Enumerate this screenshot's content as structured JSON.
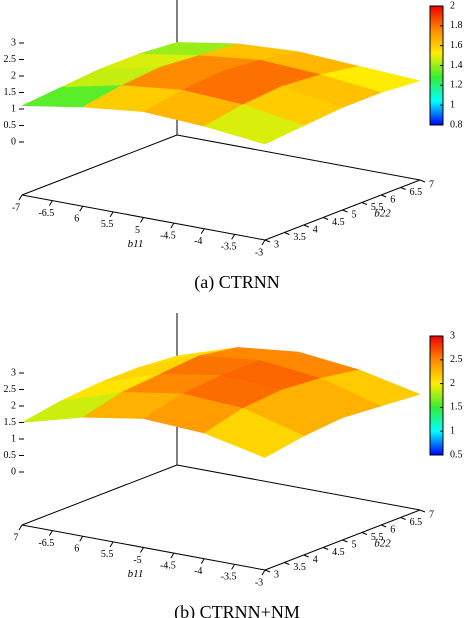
{
  "chart_data": [
    {
      "type": "surface",
      "caption": "(a) CTRNN",
      "xlabel": "b11",
      "ylabel": "b22",
      "x": [
        -7,
        -6,
        -5,
        -4,
        -3
      ],
      "y": [
        3,
        4,
        5,
        6,
        7
      ],
      "z": [
        [
          1.1,
          1.4,
          1.6,
          1.5,
          1.3
        ],
        [
          1.2,
          1.6,
          1.8,
          1.7,
          1.4
        ],
        [
          1.3,
          1.7,
          1.9,
          1.8,
          1.5
        ],
        [
          1.3,
          1.6,
          1.8,
          1.7,
          1.5
        ],
        [
          1.2,
          1.5,
          1.6,
          1.5,
          1.4
        ]
      ],
      "xlim": [
        -7,
        -3
      ],
      "xticks": [
        -7,
        -6.5,
        {
          "value": -6,
          "label": "6"
        },
        {
          "value": -5.5,
          "label": "5.5"
        },
        {
          "value": -5,
          "label": "5"
        },
        -4.5,
        -4,
        -3.5,
        -3
      ],
      "ylim": [
        3,
        7
      ],
      "yticks": [
        3,
        3.5,
        4,
        4.5,
        5,
        5.5,
        6,
        6.5,
        7
      ],
      "zlim": [
        0,
        3
      ],
      "zticks": [
        0,
        0.5,
        1,
        1.5,
        2,
        2.5,
        3
      ],
      "cblim": [
        0.8,
        2
      ],
      "cbticks": [
        0.8,
        1,
        1.2,
        1.4,
        1.6,
        1.8,
        2
      ],
      "colormap": [
        "#0000ff",
        "#00ffff",
        "#33ee33",
        "#ffee00",
        "#ff8800",
        "#ee0000"
      ]
    },
    {
      "type": "surface",
      "caption": "(b) CTRNN+NM",
      "xlabel": "b11",
      "ylabel": "b22",
      "x": [
        -7,
        -6,
        -5,
        -4,
        -3
      ],
      "y": [
        3,
        4,
        5,
        6,
        7
      ],
      "z": [
        [
          1.5,
          2.0,
          2.3,
          2.2,
          1.8
        ],
        [
          1.7,
          2.3,
          2.6,
          2.5,
          2.0
        ],
        [
          1.8,
          2.4,
          2.7,
          2.6,
          2.1
        ],
        [
          1.8,
          2.5,
          2.7,
          2.5,
          2.0
        ],
        [
          1.7,
          2.3,
          2.5,
          2.3,
          1.9
        ]
      ],
      "xlim": [
        -7,
        -3
      ],
      "xticks": [
        {
          "value": -7,
          "label": "7"
        },
        -6.5,
        {
          "value": -6,
          "label": "6"
        },
        {
          "value": -5.5,
          "label": "5.5"
        },
        -5,
        -4.5,
        -4,
        -3.5,
        -3
      ],
      "ylim": [
        3,
        7
      ],
      "yticks": [
        3,
        3.5,
        4,
        4.5,
        5,
        5.5,
        6,
        6.5,
        7
      ],
      "zlim": [
        0,
        3
      ],
      "zticks": [
        0,
        0.5,
        1,
        1.5,
        2,
        2.5,
        3
      ],
      "cblim": [
        0.5,
        3
      ],
      "cbticks": [
        0.5,
        1,
        1.5,
        2,
        2.5,
        3
      ],
      "colormap": [
        "#0000ff",
        "#00ffff",
        "#33ee33",
        "#ffee00",
        "#ff8800",
        "#ee0000"
      ]
    }
  ]
}
